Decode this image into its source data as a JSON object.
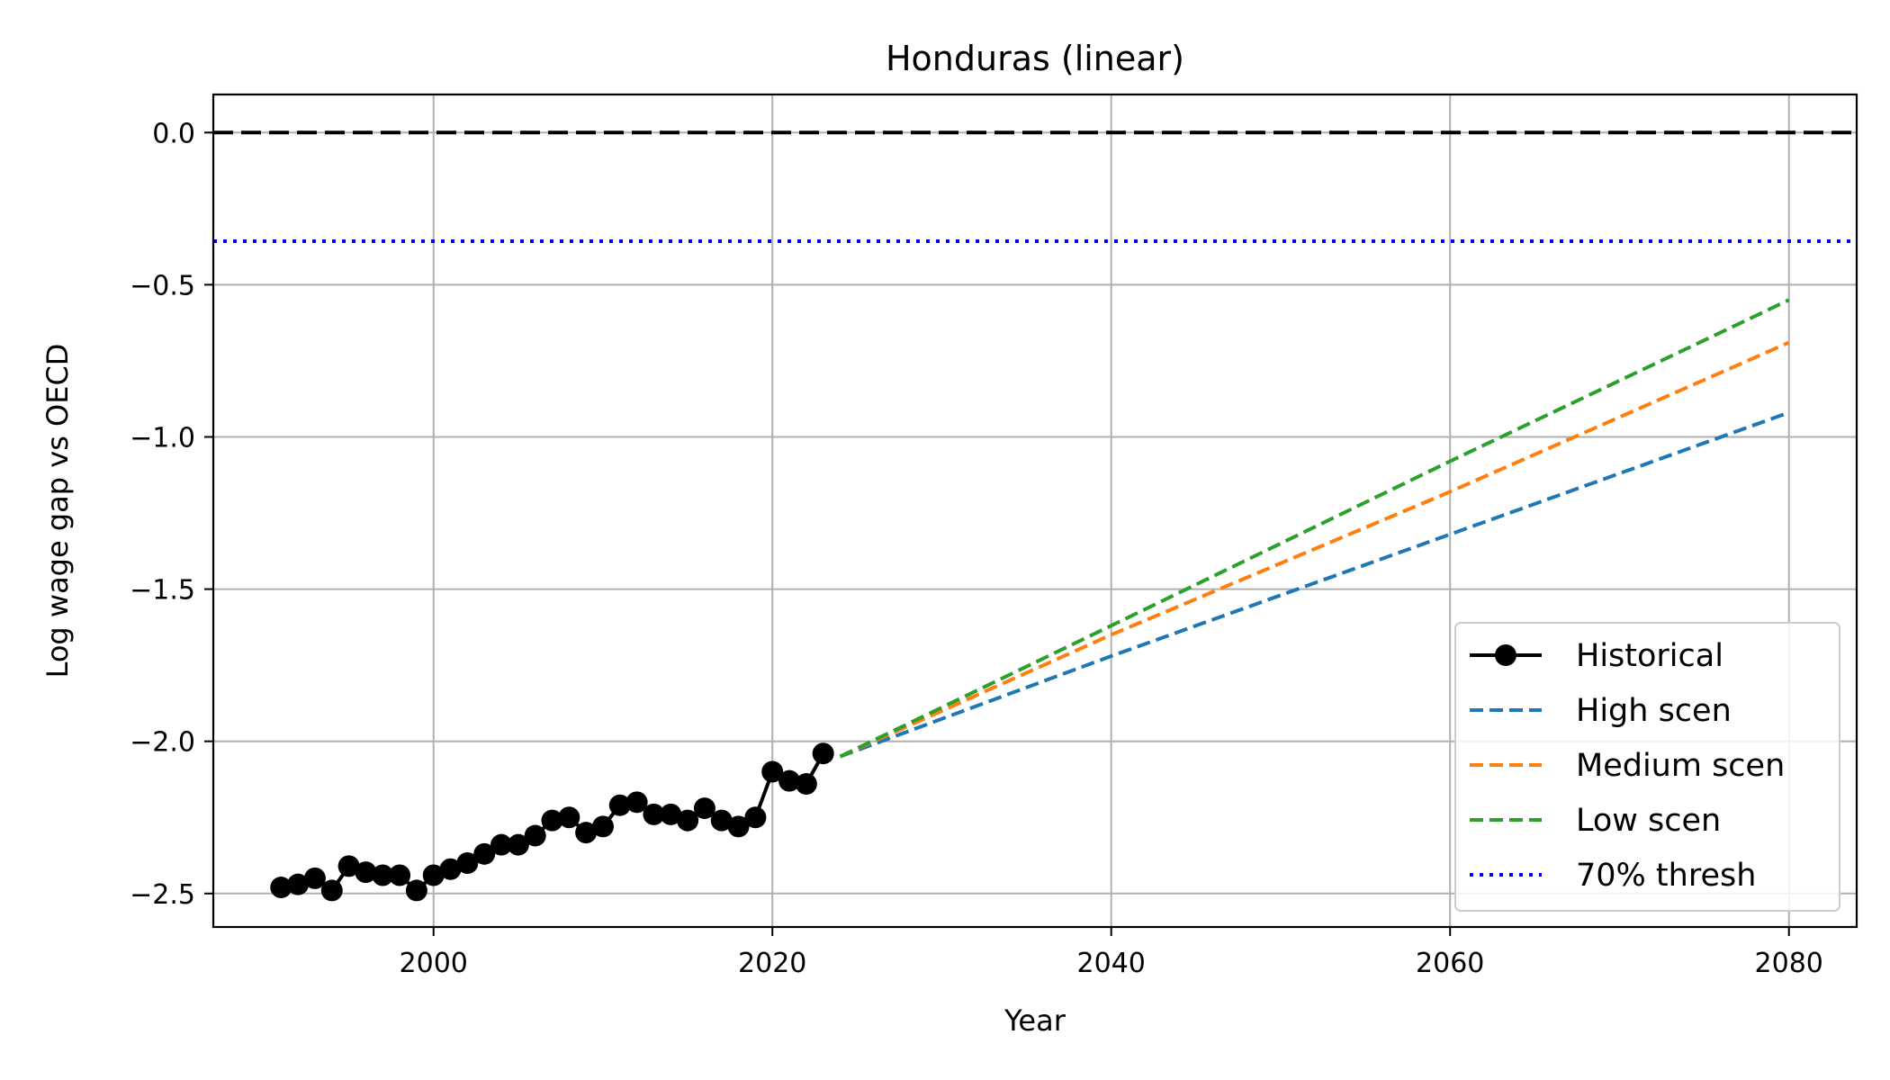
{
  "chart_data": {
    "type": "line",
    "title": "Honduras (linear)",
    "xlabel": "Year",
    "ylabel": "Log wage gap vs OECD",
    "xlim": [
      1987,
      2084
    ],
    "ylim": [
      -2.61,
      0.125
    ],
    "xticks": [
      2000,
      2020,
      2040,
      2060,
      2080
    ],
    "yticks": [
      0.0,
      -0.5,
      -1.0,
      -1.5,
      -2.0,
      -2.5
    ],
    "xtick_labels": [
      "2000",
      "2020",
      "2040",
      "2060",
      "2080"
    ],
    "ytick_labels": [
      "0.0",
      "−0.5",
      "−1.0",
      "−1.5",
      "−2.0",
      "−2.5"
    ],
    "grid": true,
    "legend_position": "lower right",
    "series": [
      {
        "name": "Historical",
        "style": "solid-marker",
        "color": "#000000",
        "x": [
          1991,
          1992,
          1993,
          1994,
          1995,
          1996,
          1997,
          1998,
          1999,
          2000,
          2001,
          2002,
          2003,
          2004,
          2005,
          2006,
          2007,
          2008,
          2009,
          2010,
          2011,
          2012,
          2013,
          2014,
          2015,
          2016,
          2017,
          2018,
          2019,
          2020,
          2021,
          2022,
          2023
        ],
        "y": [
          -2.48,
          -2.47,
          -2.45,
          -2.49,
          -2.41,
          -2.43,
          -2.44,
          -2.44,
          -2.49,
          -2.44,
          -2.42,
          -2.4,
          -2.37,
          -2.34,
          -2.34,
          -2.31,
          -2.26,
          -2.25,
          -2.3,
          -2.28,
          -2.21,
          -2.2,
          -2.24,
          -2.24,
          -2.26,
          -2.22,
          -2.26,
          -2.28,
          -2.25,
          -2.1,
          -2.13,
          -2.14,
          -2.04
        ]
      },
      {
        "name": "High scen",
        "style": "dashed",
        "color": "#1f77b4",
        "x": [
          2024,
          2040,
          2060,
          2080
        ],
        "y": [
          -2.05,
          -1.72,
          -1.32,
          -0.92
        ]
      },
      {
        "name": "Medium scen",
        "style": "dashed",
        "color": "#ff7f0e",
        "x": [
          2024,
          2040,
          2060,
          2080
        ],
        "y": [
          -2.05,
          -1.65,
          -1.18,
          -0.69
        ]
      },
      {
        "name": "Low scen",
        "style": "dashed",
        "color": "#2ca02c",
        "x": [
          2024,
          2040,
          2060,
          2080
        ],
        "y": [
          -2.05,
          -1.62,
          -1.08,
          -0.55
        ]
      },
      {
        "name": "70% thresh",
        "style": "dotted-hline",
        "color": "#0000ff",
        "y": -0.357
      }
    ],
    "reference_lines": [
      {
        "style": "dashed-hline",
        "color": "#000000",
        "y": 0.0
      }
    ]
  }
}
